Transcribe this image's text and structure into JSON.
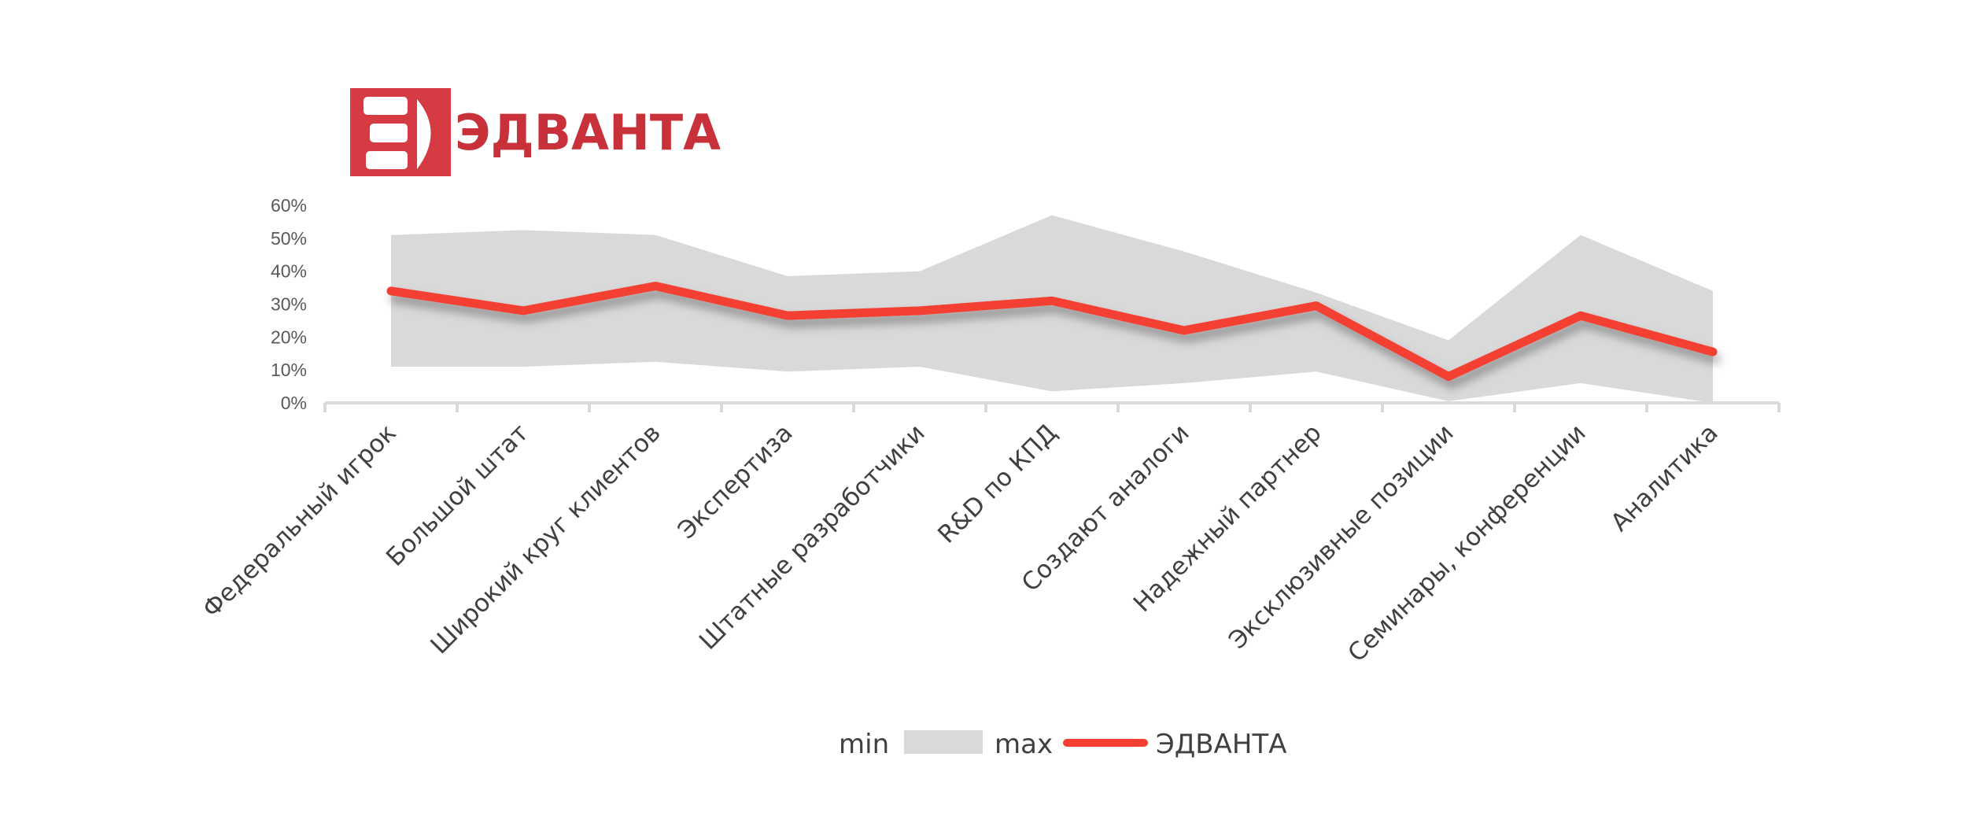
{
  "logo": {
    "text": "ЭДВАНТА",
    "color": "#d63b43"
  },
  "chart_data": {
    "type": "area",
    "title": "",
    "xlabel": "",
    "ylabel": "",
    "ylim": [
      0,
      0.6
    ],
    "yticks": [
      "0%",
      "10%",
      "20%",
      "30%",
      "40%",
      "50%",
      "60%"
    ],
    "grid": false,
    "categories": [
      "Федеральный игрок",
      "Большой штат",
      "Широкий круг клиентов",
      "Экспертиза",
      "Штатные разработчики",
      "R&D по КПД",
      "Создают аналоги",
      "Надежный партнер",
      "Эксклюзивные позиции",
      "Семинары, конференции",
      "Аналитика"
    ],
    "series": [
      {
        "name": "min",
        "values": [
          0.11,
          0.11,
          0.125,
          0.095,
          0.11,
          0.035,
          0.06,
          0.095,
          0.005,
          0.06,
          0.0
        ],
        "color": "#ffffff"
      },
      {
        "name": "max",
        "values": [
          0.51,
          0.525,
          0.51,
          0.385,
          0.4,
          0.57,
          0.46,
          0.335,
          0.19,
          0.51,
          0.34
        ],
        "color": "#d9d9d9"
      },
      {
        "name": "ЭДВАНТА",
        "values": [
          0.34,
          0.28,
          0.355,
          0.265,
          0.28,
          0.31,
          0.22,
          0.295,
          0.08,
          0.265,
          0.155
        ],
        "color": "#f43f32"
      }
    ],
    "legend": {
      "position": "bottom",
      "entries": [
        "min",
        "max",
        "ЭДВАНТА"
      ]
    }
  }
}
